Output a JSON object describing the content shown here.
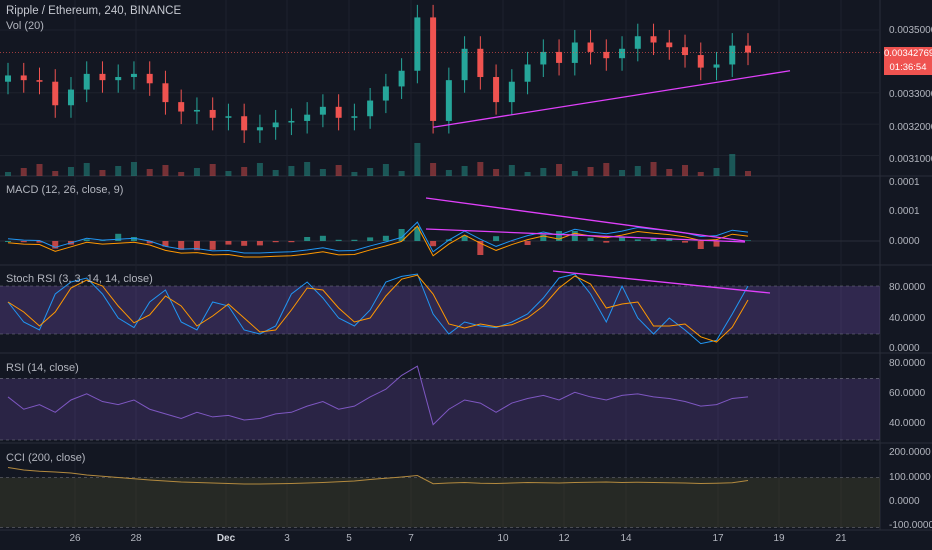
{
  "header": {
    "title": "Ripple / Ethereum, 240, BINANCE",
    "vol_label": "Vol (20)"
  },
  "price_tag": {
    "price": "0.00342769",
    "countdown": "01:36:54",
    "color": "#ef5350"
  },
  "panes": {
    "price": {
      "ticks": [
        "0.00350000",
        "0.00330000",
        "0.00320000",
        "0.00310000"
      ],
      "ylim": [
        0.00306,
        0.00357
      ]
    },
    "macd": {
      "label": "MACD (12, 26, close, 9)",
      "ticks": [
        "0.0001",
        "0.0001",
        "0.0000"
      ]
    },
    "stoch": {
      "label": "Stoch RSI (3, 3, 14, 14, close)",
      "ticks": [
        "80.0000",
        "40.0000",
        "0.0000"
      ],
      "ylim": [
        0,
        100
      ]
    },
    "rsi": {
      "label": "RSI (14, close)",
      "ticks": [
        "80.0000",
        "60.0000",
        "40.0000"
      ],
      "ylim": [
        30,
        82
      ]
    },
    "cci": {
      "label": "CCI (200, close)",
      "ticks": [
        "200.0000",
        "100.0000",
        "0.0000",
        "-100.0000"
      ],
      "ylim": [
        -110,
        210
      ]
    }
  },
  "x_axis": {
    "labels": [
      "26",
      "28",
      "Dec",
      "3",
      "5",
      "7",
      "10",
      "12",
      "14",
      "17",
      "19",
      "21"
    ]
  },
  "colors": {
    "bull": "#26a69a",
    "bear": "#ef5350",
    "trend": "#e040fb",
    "band": "#7e57c2"
  },
  "chart_data": {
    "type": "candlestick",
    "x": [
      "Nov 24",
      "Nov 24",
      "Nov 25",
      "Nov 25",
      "Nov 26",
      "Nov 26",
      "Nov 27",
      "Nov 27",
      "Nov 28",
      "Nov 28",
      "Nov 29",
      "Nov 29",
      "Nov 30",
      "Nov 30",
      "Dec 1",
      "Dec 1",
      "Dec 2",
      "Dec 2",
      "Dec 3",
      "Dec 3",
      "Dec 4",
      "Dec 4",
      "Dec 5",
      "Dec 5",
      "Dec 6",
      "Dec 6",
      "Dec 7",
      "Dec 7",
      "Dec 8",
      "Dec 8",
      "Dec 9",
      "Dec 9",
      "Dec 10",
      "Dec 10",
      "Dec 11",
      "Dec 11",
      "Dec 12",
      "Dec 12",
      "Dec 13",
      "Dec 13",
      "Dec 14",
      "Dec 14",
      "Dec 15",
      "Dec 15",
      "Dec 16",
      "Dec 16",
      "Dec 17",
      "Dec 17"
    ],
    "price_close": [
      0.003355,
      0.00334,
      0.003335,
      0.00326,
      0.00331,
      0.00336,
      0.00334,
      0.00335,
      0.00336,
      0.00333,
      0.00327,
      0.00324,
      0.003245,
      0.00322,
      0.003225,
      0.00318,
      0.00319,
      0.003205,
      0.00321,
      0.00323,
      0.003255,
      0.00322,
      0.003225,
      0.003275,
      0.00332,
      0.00337,
      0.00354,
      0.00321,
      0.00334,
      0.00344,
      0.00335,
      0.00327,
      0.003335,
      0.00339,
      0.00343,
      0.003395,
      0.00346,
      0.00343,
      0.00341,
      0.00344,
      0.00348,
      0.00346,
      0.003445,
      0.00342,
      0.00338,
      0.00339,
      0.00345,
      0.003428
    ],
    "stoch_k": [
      60,
      35,
      25,
      70,
      85,
      90,
      70,
      40,
      28,
      60,
      75,
      35,
      25,
      60,
      55,
      25,
      20,
      30,
      70,
      85,
      65,
      40,
      30,
      50,
      85,
      92,
      95,
      45,
      20,
      35,
      30,
      28,
      35,
      45,
      65,
      90,
      95,
      70,
      35,
      80,
      40,
      20,
      40,
      25,
      8,
      12,
      45,
      80
    ],
    "rsi": [
      58,
      50,
      53,
      48,
      56,
      60,
      55,
      53,
      56,
      50,
      47,
      44,
      48,
      45,
      46,
      43,
      44,
      47,
      48,
      52,
      55,
      50,
      52,
      58,
      63,
      72,
      78,
      40,
      50,
      56,
      54,
      48,
      54,
      57,
      59,
      56,
      61,
      58,
      56,
      59,
      60,
      58,
      57,
      55,
      52,
      53,
      57,
      58
    ],
    "cci": [
      140,
      130,
      125,
      122,
      118,
      110,
      105,
      100,
      95,
      90,
      86,
      82,
      80,
      78,
      76,
      74,
      74,
      75,
      76,
      78,
      80,
      83,
      86,
      92,
      97,
      102,
      108,
      75,
      78,
      80,
      77,
      76,
      78,
      80,
      79,
      78,
      80,
      81,
      82,
      80,
      81,
      80,
      79,
      78,
      76,
      77,
      79,
      88
    ],
    "macd_ticks": [
      "0.0001",
      "0.0001",
      "0.0000"
    ]
  }
}
